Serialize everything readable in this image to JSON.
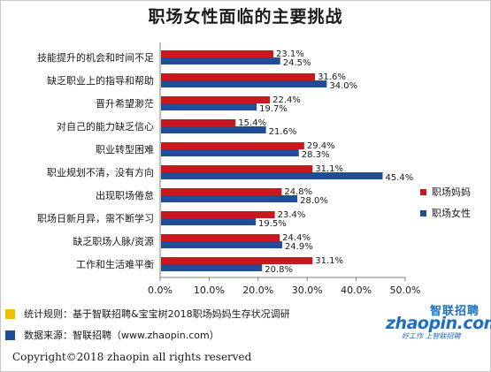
{
  "title": "职场女性面临的主要挑战",
  "colors": {
    "series1": "#c8191e",
    "series2": "#1f4e96",
    "note1": "#f0c000",
    "note2": "#1f4e96"
  },
  "legend": [
    "职场妈妈",
    "职场女性"
  ],
  "notes": [
    "统计规则：基于智联招聘&宝宝树2018职场妈妈生存状况调研",
    "数据来源：智联招聘（www.zhaopin.com）"
  ],
  "logo": {
    "cn": "智联招聘",
    "main": "zhaopin.com",
    "sub": "好工作 上智联招聘"
  },
  "copyright": "Copyright©2018 zhaopin all rights reserved",
  "chart_data": {
    "type": "bar",
    "orientation": "horizontal",
    "categories": [
      "技能提升的机会和时间不足",
      "缺乏职业上的指导和帮助",
      "晋升希望渺茫",
      "对自己的能力缺乏信心",
      "职业转型困难",
      "职业规划不清，没有方向",
      "出现职场倦怠",
      "职场日新月异，需不断学习",
      "缺乏职场人脉/资源",
      "工作和生活难平衡"
    ],
    "series": [
      {
        "name": "职场妈妈",
        "values": [
          23.1,
          31.6,
          22.4,
          15.4,
          29.4,
          31.1,
          24.8,
          23.4,
          24.4,
          31.1
        ],
        "labels": [
          "23.1%",
          "31.6%",
          "22.4%",
          "15.4%",
          "29.4%",
          "31.1%",
          "24.8%",
          "23.4%",
          "24.4%",
          "31.1%"
        ]
      },
      {
        "name": "职场女性",
        "values": [
          24.5,
          34.0,
          19.7,
          21.6,
          28.3,
          45.4,
          28.0,
          19.5,
          24.9,
          20.8
        ],
        "labels": [
          "24.5%",
          "34.0%",
          "19.7%",
          "21.6%",
          "28.3%",
          "45.4%",
          "28.0%",
          "19.5%",
          "24.9%",
          "20.8%"
        ]
      }
    ],
    "xlim": [
      0,
      50
    ],
    "ticks": [
      0,
      10,
      20,
      30,
      40,
      50
    ],
    "tick_labels": [
      "0.0%",
      "10.0%",
      "20.0%",
      "30.0%",
      "40.0%",
      "50.0%"
    ],
    "grid": false,
    "legend_position": "right"
  }
}
